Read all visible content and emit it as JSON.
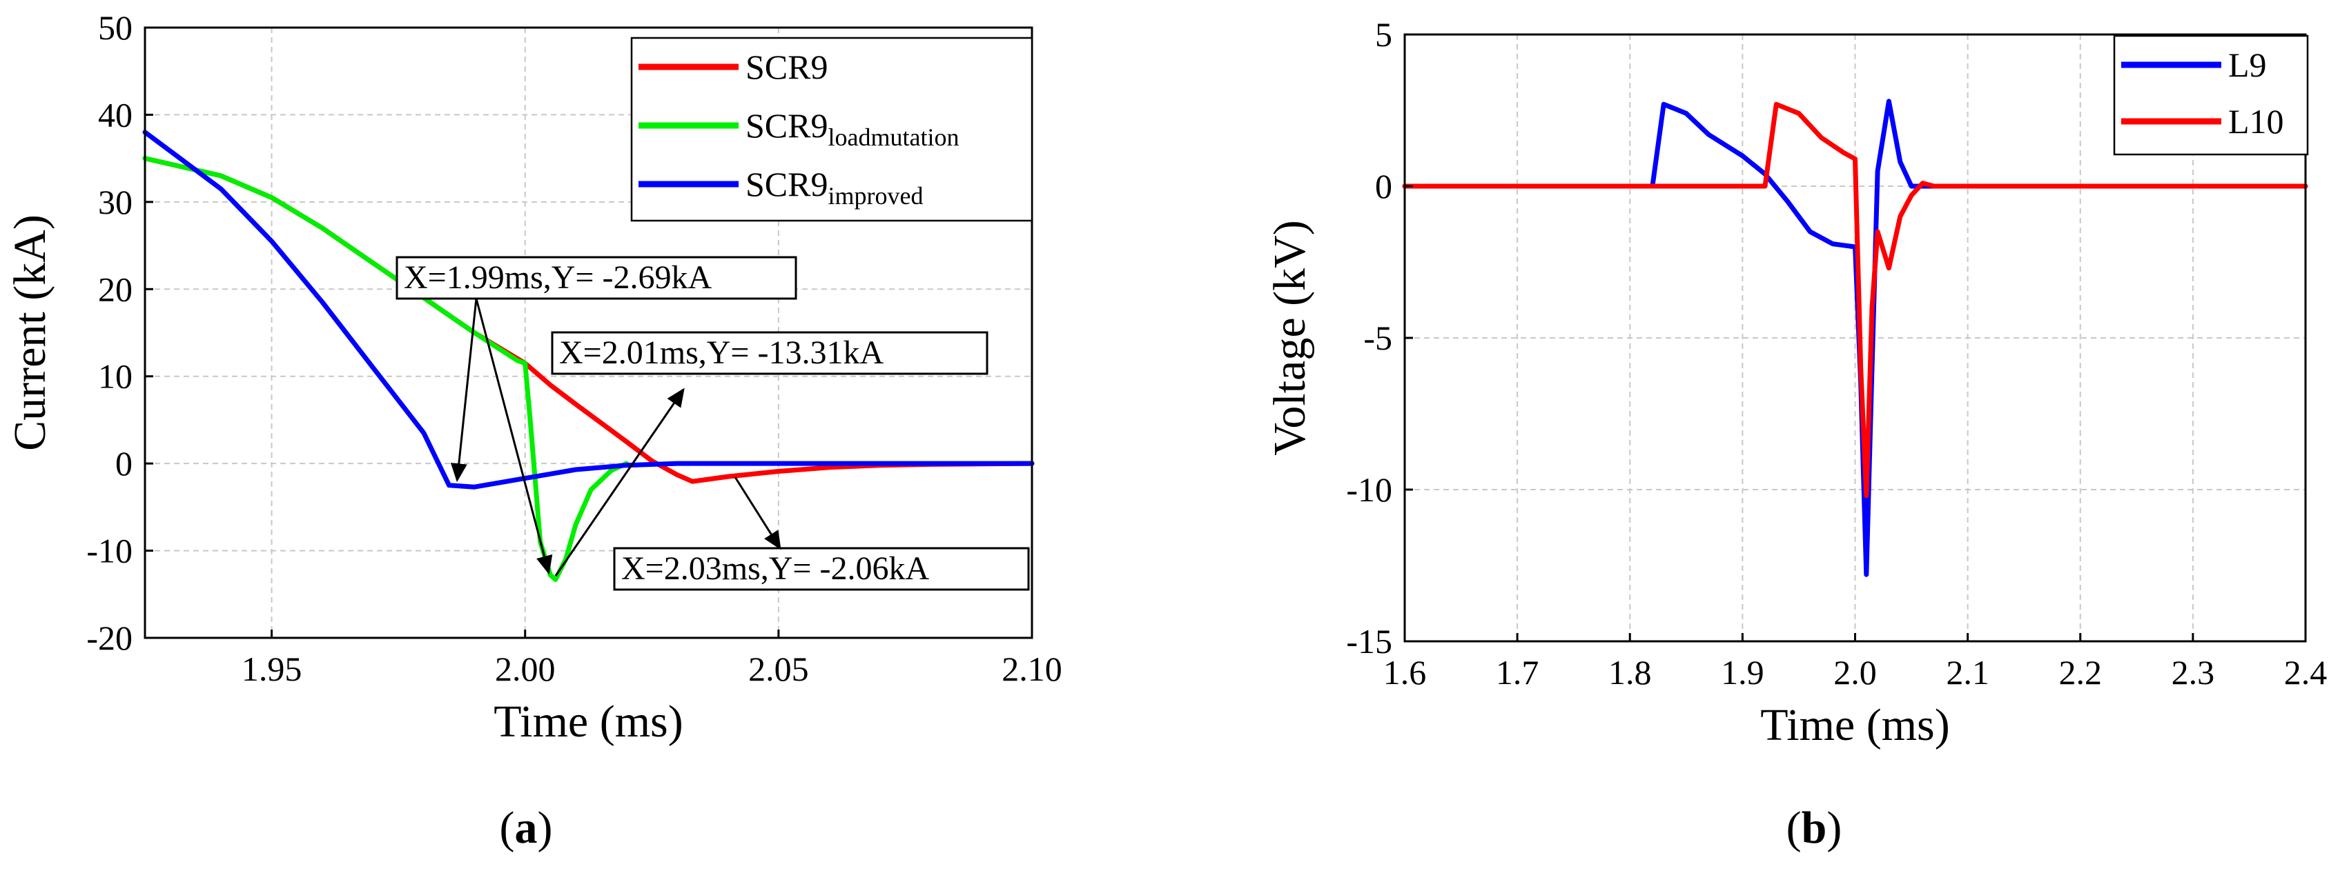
{
  "chart_data": [
    {
      "panel": "a",
      "type": "line",
      "title": "",
      "xlabel": "Time (ms)",
      "ylabel": "Current (kA)",
      "xlim": [
        1.925,
        2.1
      ],
      "ylim": [
        -20,
        50
      ],
      "xticks": [
        1.95,
        2.0,
        2.05,
        2.1
      ],
      "xtick_labels": [
        "1.95",
        "2.00",
        "2.05",
        "2.10"
      ],
      "yticks": [
        -20,
        -10,
        0,
        10,
        20,
        30,
        40,
        50
      ],
      "ytick_labels": [
        "-20",
        "-10",
        "0",
        "10",
        "20",
        "30",
        "40",
        "50"
      ],
      "grid": true,
      "legend_position": "top-right",
      "series": [
        {
          "name": "SCR9",
          "name_base": "SCR9",
          "name_sub": "",
          "color": "#ff0000",
          "x": [
            1.925,
            1.94,
            1.95,
            1.96,
            1.97,
            1.98,
            1.99,
            2.0,
            2.005,
            2.01,
            2.02,
            2.025,
            2.03,
            2.033,
            2.04,
            2.05,
            2.06,
            2.07,
            2.08,
            2.1
          ],
          "y": [
            35,
            33,
            30.5,
            27,
            23,
            19,
            15,
            11.5,
            9,
            6.8,
            2.5,
            0.3,
            -1.3,
            -2.06,
            -1.5,
            -0.9,
            -0.45,
            -0.2,
            -0.1,
            0
          ]
        },
        {
          "name": "SCR9loadmutation",
          "name_base": "SCR9",
          "name_sub": "loadmutation",
          "color": "#00ee00",
          "x": [
            1.925,
            1.94,
            1.95,
            1.96,
            1.97,
            1.98,
            1.99,
            1.9985,
            2.0,
            2.001,
            2.003,
            2.005,
            2.006,
            2.008,
            2.01,
            2.013,
            2.017,
            2.02
          ],
          "y": [
            35,
            33,
            30.5,
            27,
            23,
            19,
            15,
            11.8,
            11.5,
            5,
            -9,
            -12.8,
            -13.31,
            -11,
            -7,
            -3,
            -0.8,
            0
          ]
        },
        {
          "name": "SCR9improved",
          "name_base": "SCR9",
          "name_sub": "improved",
          "color": "#0000ff",
          "x": [
            1.925,
            1.94,
            1.95,
            1.96,
            1.97,
            1.98,
            1.985,
            1.99,
            2.0,
            2.005,
            2.01,
            2.02,
            2.03,
            2.05,
            2.1
          ],
          "y": [
            38,
            31.5,
            25.5,
            18.5,
            11,
            3.5,
            -2.5,
            -2.69,
            -1.7,
            -1.2,
            -0.7,
            -0.2,
            0,
            0,
            0
          ]
        }
      ],
      "annotations": [
        {
          "text": "X=1.99ms,Y= -2.69kA",
          "x": 1.99,
          "y": -2.69
        },
        {
          "text": "X=2.01ms,Y= -13.31kA",
          "x": 2.01,
          "y": -13.31
        },
        {
          "text": "X=2.03ms,Y= -2.06kA",
          "x": 2.03,
          "y": -2.06
        }
      ]
    },
    {
      "panel": "b",
      "type": "line",
      "title": "",
      "xlabel": "Time (ms)",
      "ylabel": "Voltage (kV)",
      "xlim": [
        1.6,
        2.4
      ],
      "ylim": [
        -15,
        5
      ],
      "xticks": [
        1.6,
        1.7,
        1.8,
        1.9,
        2.0,
        2.1,
        2.2,
        2.3,
        2.4
      ],
      "xtick_labels": [
        "1.6",
        "1.7",
        "1.8",
        "1.9",
        "2.0",
        "2.1",
        "2.2",
        "2.3",
        "2.4"
      ],
      "yticks": [
        -15,
        -10,
        -5,
        0,
        5
      ],
      "ytick_labels": [
        "-15",
        "-10",
        "-5",
        "0",
        "5"
      ],
      "grid": true,
      "legend_position": "top-right",
      "series": [
        {
          "name": "L9",
          "name_base": "L9",
          "name_sub": "",
          "color": "#0000ff",
          "x": [
            1.6,
            1.82,
            1.83,
            1.85,
            1.87,
            1.9,
            1.92,
            1.94,
            1.96,
            1.98,
            2.0,
            2.005,
            2.01,
            2.015,
            2.02,
            2.03,
            2.04,
            2.05,
            2.06,
            2.4
          ],
          "y": [
            0,
            0,
            2.7,
            2.4,
            1.7,
            1.0,
            0.4,
            -0.5,
            -1.5,
            -1.9,
            -2.0,
            -6.5,
            -12.8,
            -6,
            0.5,
            2.8,
            0.8,
            0,
            0,
            0
          ]
        },
        {
          "name": "L10",
          "name_base": "L10",
          "name_sub": "",
          "color": "#ff0000",
          "x": [
            1.6,
            1.92,
            1.93,
            1.95,
            1.97,
            1.99,
            2.0,
            2.005,
            2.01,
            2.015,
            2.02,
            2.03,
            2.04,
            2.05,
            2.06,
            2.07,
            2.4
          ],
          "y": [
            0,
            0,
            2.7,
            2.4,
            1.6,
            1.1,
            0.9,
            -6,
            -10.2,
            -4,
            -1.5,
            -2.7,
            -1.0,
            -0.3,
            0.1,
            0,
            0
          ]
        }
      ]
    }
  ],
  "panel_labels": [
    "(a)",
    "(b)"
  ]
}
